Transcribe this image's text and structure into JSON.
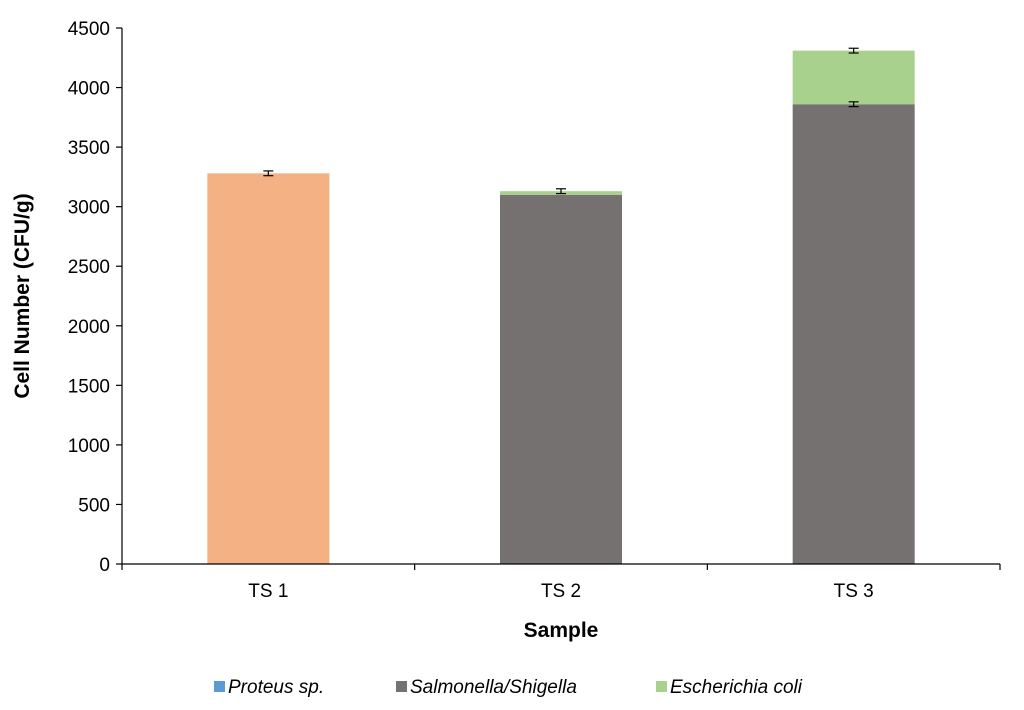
{
  "chart_data": {
    "type": "bar",
    "stacked": true,
    "categories": [
      "TS 1",
      "TS 2",
      "TS 3"
    ],
    "series": [
      {
        "name": "Proteus sp.",
        "color": "#5B9BD5",
        "values": [
          0,
          0,
          0
        ],
        "errors": [
          0,
          0,
          0
        ]
      },
      {
        "name": "Salmonella/Shigella",
        "color": "#767171",
        "values": [
          0,
          3100,
          3860
        ],
        "errors": [
          0,
          0,
          20
        ]
      },
      {
        "name": "Escherichia coli",
        "color": "#A9D18E",
        "values": [
          0,
          30,
          450
        ],
        "errors": [
          0,
          20,
          20
        ]
      },
      {
        "name": "",
        "color": "#F4B183",
        "values": [
          3280,
          0,
          0
        ],
        "errors": [
          20,
          0,
          0
        ]
      }
    ],
    "xlabel": "Sample",
    "ylabel": "Cell Number (CFU/g)",
    "ylim": [
      0,
      4500
    ],
    "yticks": [
      0,
      500,
      1000,
      1500,
      2000,
      2500,
      3000,
      3500,
      4000,
      4500
    ],
    "grid": false,
    "legend_position": "bottom"
  }
}
